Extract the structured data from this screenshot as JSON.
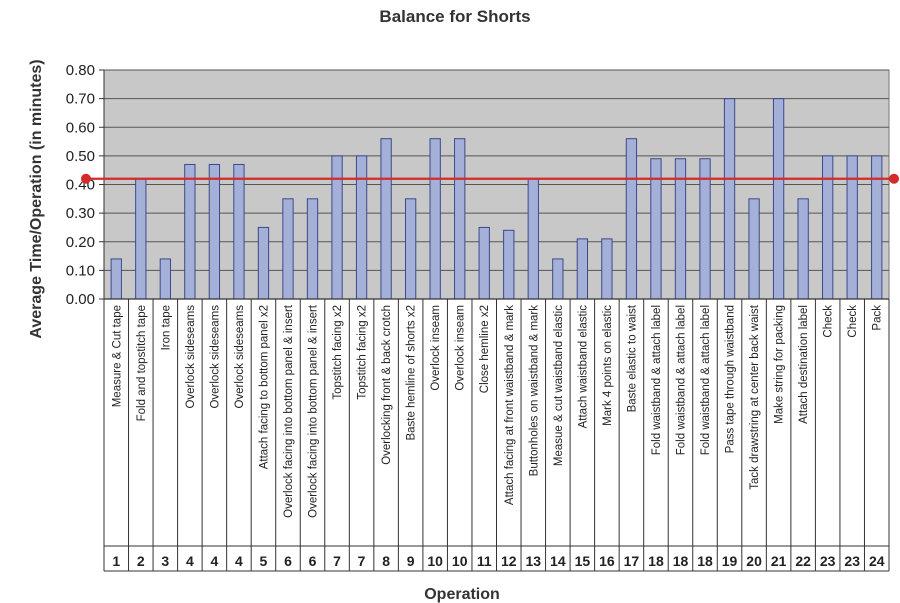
{
  "chart_data": {
    "type": "bar",
    "title": "Balance for Shorts",
    "xlabel": "Operation",
    "ylabel": "Average Time/Operation (in minutes)",
    "ylim": [
      0,
      0.8
    ],
    "yticks": [
      "0.00",
      "0.10",
      "0.20",
      "0.30",
      "0.40",
      "0.50",
      "0.60",
      "0.70",
      "0.80"
    ],
    "grid": true,
    "categories": [
      "Measure & Cut tape",
      "Fold and topstitch tape",
      "Iron tape",
      "Overlock sideseams",
      "Overlock sideseams",
      "Overlock sideseams",
      "Attach facing to bottom panel x2",
      "Overlock facing into bottom panel & insert",
      "Overlock facing into bottom panel & insert",
      "Topstitch facing x2",
      "Topstitch facing x2",
      "Overlocking front & back crotch",
      "Baste hemline of shorts x2",
      "Overlock inseam",
      "Overlock inseam",
      "Close hemline x2",
      "Attach facing at front waistband & mark",
      "Buttonholes on waistband & mark",
      "Measue & cut waistband elastic",
      "Attach waistband elastic",
      "Mark 4 points on elastic",
      "Baste elastic to waist",
      "Fold waistband & attach label",
      "Fold waistband & attach label",
      "Fold waistband & attach label",
      "Pass tape through waistband",
      "Tack drawstring at center back waist",
      "Make string for packing",
      "Attach destination label",
      "Check",
      "Check",
      "Pack"
    ],
    "operation_numbers": [
      "1",
      "2",
      "3",
      "4",
      "4",
      "4",
      "5",
      "6",
      "6",
      "7",
      "7",
      "8",
      "9",
      "10",
      "10",
      "11",
      "12",
      "13",
      "14",
      "15",
      "16",
      "17",
      "18",
      "18",
      "18",
      "19",
      "20",
      "21",
      "22",
      "23",
      "23",
      "24"
    ],
    "values": [
      0.14,
      0.42,
      0.14,
      0.47,
      0.47,
      0.47,
      0.25,
      0.35,
      0.35,
      0.5,
      0.5,
      0.56,
      0.35,
      0.56,
      0.56,
      0.25,
      0.24,
      0.42,
      0.14,
      0.21,
      0.21,
      0.56,
      0.49,
      0.49,
      0.49,
      0.7,
      0.35,
      0.7,
      0.35,
      0.5,
      0.5,
      0.5
    ],
    "reference_line": 0.42,
    "colors": {
      "bar_fill": "#a5b0d8",
      "bar_stroke": "#3a4a8a",
      "plot_background": "#c8c8c8",
      "gridline": "#555555",
      "reference_line": "#d42a2a"
    }
  }
}
